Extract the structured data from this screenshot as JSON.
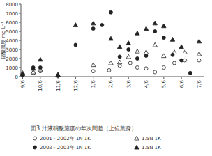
{
  "chart_data": {
    "type": "scatter",
    "title": "図3 汁液硝酸濃度の年次間差（上位葉身）",
    "y_label": "硝酸濃度 mg L⁻¹",
    "xlim": [
      -0.1,
      10.3
    ],
    "xticks": [
      {
        "value": 0,
        "label": "9/6"
      },
      {
        "value": 1,
        "label": "10/6"
      },
      {
        "value": 2,
        "label": "11/6"
      },
      {
        "value": 3,
        "label": "12/6"
      },
      {
        "value": 4,
        "label": "1/6"
      },
      {
        "value": 5,
        "label": "2/6"
      },
      {
        "value": 6,
        "label": "3/6"
      },
      {
        "value": 7,
        "label": "4/6"
      },
      {
        "value": 8,
        "label": "5/6"
      },
      {
        "value": 9,
        "label": "6/6"
      },
      {
        "value": 10,
        "label": "7/6"
      }
    ],
    "ylim": [
      0,
      8000
    ],
    "yticks": [
      0,
      1000,
      2000,
      3000,
      4000,
      5000,
      6000,
      7000,
      8000
    ],
    "grid": false,
    "series": [
      {
        "name": "2001～2002年 1N 1K",
        "color": "#222222",
        "marker": "open-circle",
        "x": [
          0,
          0.6,
          1.0,
          2.0,
          4.0,
          4.9,
          5.5,
          6.1,
          6.5,
          7.0,
          7.5,
          8.0,
          8.6,
          9.2,
          10.0
        ],
        "values": [
          300,
          400,
          600,
          100,
          600,
          700,
          1200,
          1500,
          1000,
          900,
          500,
          1000,
          1500,
          1800,
          1800
        ]
      },
      {
        "name": "1.5N 1K",
        "color": "#222222",
        "marker": "open-triangle",
        "x": [
          0,
          0.6,
          1.0,
          2.0,
          4.0,
          5.0,
          5.5,
          6.0,
          6.5,
          7.0,
          7.5,
          8.0,
          8.6,
          9.2,
          10.0
        ],
        "values": [
          400,
          500,
          800,
          200,
          1300,
          1500,
          1600,
          2200,
          2800,
          2700,
          3500,
          2300,
          2700,
          2700,
          2500
        ]
      },
      {
        "name": "2002～2003年 1N 1K",
        "color": "#222222",
        "marker": "circle",
        "x": [
          0,
          0.6,
          1.0,
          2.0,
          3.0,
          4.0,
          4.5,
          5.0,
          5.5,
          6.0,
          6.5,
          7.0,
          7.5,
          8.0,
          8.5,
          9.0,
          9.5
        ],
        "values": [
          200,
          1000,
          1000,
          100,
          3500,
          5300,
          5700,
          7100,
          2200,
          3000,
          2000,
          2300,
          5000,
          4300,
          2400,
          1800,
          400
        ]
      },
      {
        "name": "1.5N 1K",
        "color": "#222222",
        "marker": "triangle",
        "x": [
          0,
          0.6,
          1.0,
          2.0,
          3.0,
          4.0,
          5.0,
          5.5,
          6.0,
          6.5,
          7.0,
          7.5,
          8.0,
          8.5,
          9.0,
          10.0
        ],
        "values": [
          300,
          900,
          1900,
          200,
          5700,
          5900,
          4200,
          3300,
          3700,
          4800,
          5300,
          5900,
          5600,
          4100,
          3300,
          3900
        ]
      }
    ]
  }
}
